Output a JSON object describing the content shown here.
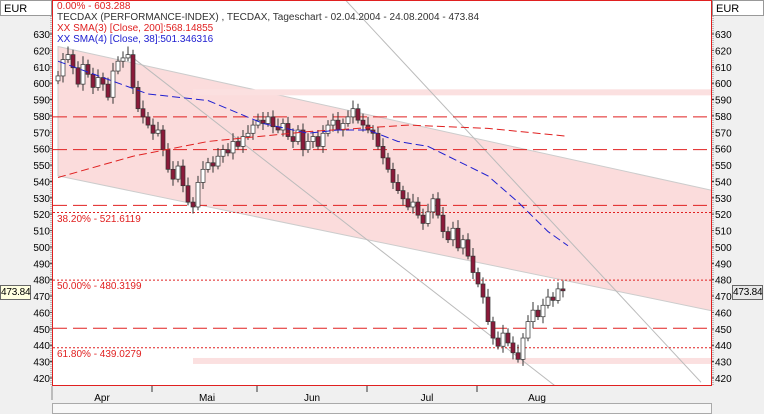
{
  "unit_left": "EUR",
  "unit_right": "EUR",
  "legend": {
    "fib_top": "0.00% - 603.288",
    "title": "TECDAX (PERFORMANCE-INDEX) , TECDAX, Tageschart - 02.04.2004 - 24.08.2004 - 473.84",
    "sma200": "XX SMA(3) [Close, 200]:568.14855",
    "sma38": "XX SMA(4) [Close, 38]:501.346316"
  },
  "last_price": "473.84",
  "colors": {
    "up": "#ffffff",
    "down": "#8b1a3a",
    "sma200": "#e02020",
    "sma38": "#2020d0",
    "channel": "#fbdcdc",
    "fib": "#e02020"
  },
  "chart_data": {
    "type": "candlestick",
    "title": "TECDAX (PERFORMANCE-INDEX) , TECDAX, Tageschart - 02.04.2004 - 24.08.2004 - 473.84",
    "ylabel": "EUR",
    "ylim": [
      415,
      635
    ],
    "yticks": [
      630,
      620,
      610,
      600,
      590,
      580,
      570,
      560,
      550,
      540,
      530,
      520,
      510,
      500,
      490,
      480,
      470,
      460,
      450,
      440,
      430,
      420
    ],
    "xticks": [
      {
        "label": "Apr",
        "day": 9
      },
      {
        "label": "Mai",
        "day": 30
      },
      {
        "label": "Jun",
        "day": 51
      },
      {
        "label": "Jul",
        "day": 74
      },
      {
        "label": "Aug",
        "day": 96
      }
    ],
    "month_starts": [
      19,
      40,
      62,
      84
    ],
    "closes": [
      605,
      615,
      618,
      610,
      600,
      612,
      606,
      598,
      604,
      600,
      592,
      608,
      614,
      616,
      618,
      598,
      585,
      580,
      575,
      570,
      572,
      560,
      548,
      542,
      550,
      538,
      528,
      525,
      540,
      548,
      552,
      550,
      556,
      560,
      558,
      565,
      562,
      568,
      570,
      575,
      578,
      576,
      580,
      574,
      572,
      576,
      568,
      565,
      572,
      560,
      565,
      568,
      562,
      570,
      575,
      578,
      572,
      576,
      580,
      585,
      578,
      575,
      572,
      570,
      562,
      555,
      548,
      540,
      535,
      530,
      525,
      528,
      520,
      515,
      522,
      530,
      520,
      510,
      505,
      512,
      500,
      505,
      495,
      485,
      478,
      470,
      455,
      445,
      440,
      448,
      442,
      436,
      432,
      445,
      455,
      462,
      458,
      465,
      470,
      468,
      475,
      473.84
    ],
    "sma38": [
      [
        0,
        614
      ],
      [
        18,
        594
      ],
      [
        30,
        590
      ],
      [
        41,
        576
      ],
      [
        50,
        570
      ],
      [
        56,
        572
      ],
      [
        62,
        572
      ],
      [
        68,
        565
      ],
      [
        74,
        562
      ],
      [
        80,
        553
      ],
      [
        86,
        544
      ],
      [
        92,
        528
      ],
      [
        98,
        510
      ],
      [
        102,
        501.35
      ]
    ],
    "sma200": [
      [
        0,
        543
      ],
      [
        15,
        556
      ],
      [
        30,
        565
      ],
      [
        50,
        571
      ],
      [
        70,
        575
      ],
      [
        86,
        573
      ],
      [
        102,
        568.15
      ]
    ],
    "channel": {
      "upper": [
        [
          0,
          623
        ],
        [
          131,
          535
        ]
      ],
      "lower": [
        [
          0,
          544
        ],
        [
          131,
          461.5
        ]
      ]
    },
    "trendlines": [
      [
        [
          14.6,
          617
        ],
        [
          100.6,
          413
        ]
      ],
      [
        [
          57.6,
          651
        ],
        [
          128.6,
          418
        ]
      ]
    ],
    "zones": [
      595,
      431
    ],
    "hlines_dashed": [
      580,
      560,
      526,
      451
    ],
    "fib_levels": [
      {
        "label": "38.20% - 521.6119",
        "value": 521.6119
      },
      {
        "label": "50.00% - 480.3199",
        "value": 480.3199
      },
      {
        "label": "61.80% - 439.0279",
        "value": 439.0279
      }
    ]
  }
}
